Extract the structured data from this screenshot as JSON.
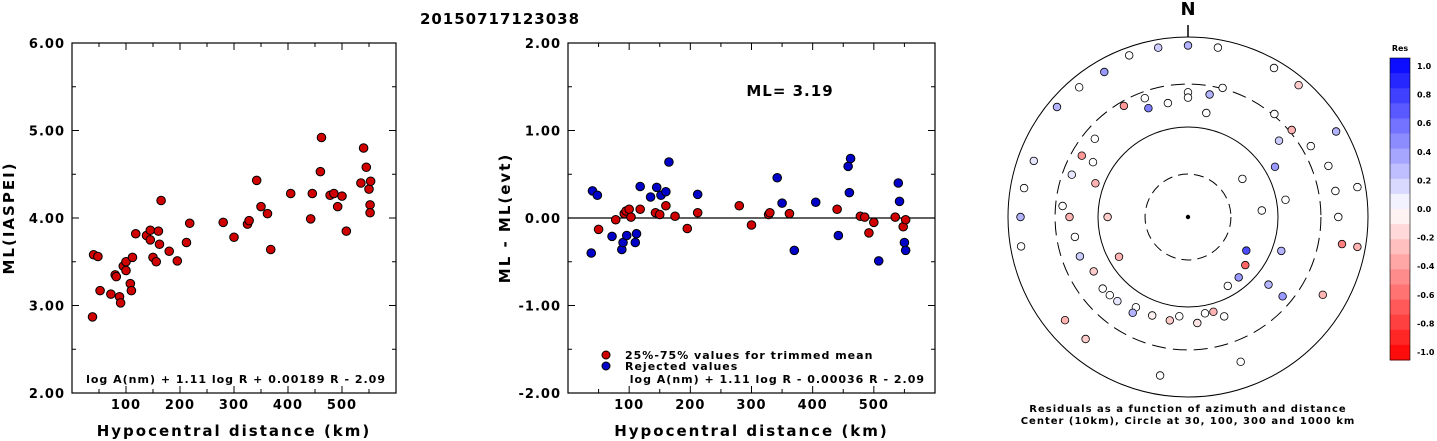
{
  "title": "20150717123038",
  "chart_data": [
    {
      "type": "scatter",
      "xlabel": "Hypocentral distance (km)",
      "ylabel": "ML(IASPEI)",
      "xlim": [
        0,
        600
      ],
      "ylim": [
        2,
        6
      ],
      "xticks": [
        100,
        200,
        300,
        400,
        500
      ],
      "yticks": [
        {
          "v": 2,
          "label": "2.00"
        },
        {
          "v": 3,
          "label": "3.00"
        },
        {
          "v": 4,
          "label": "4.00"
        },
        {
          "v": 5,
          "label": "5.00"
        },
        {
          "v": 6,
          "label": "6.00"
        }
      ],
      "formula": "log A(nm) + 1.11 log R + 0.00189 R - 2.09",
      "point_color": "#d00000",
      "points": [
        [
          38,
          2.87
        ],
        [
          40,
          3.58
        ],
        [
          48,
          3.56
        ],
        [
          52,
          3.17
        ],
        [
          72,
          3.13
        ],
        [
          80,
          3.35
        ],
        [
          82,
          3.33
        ],
        [
          88,
          3.1
        ],
        [
          90,
          3.03
        ],
        [
          95,
          3.45
        ],
        [
          100,
          3.5
        ],
        [
          100,
          3.4
        ],
        [
          108,
          3.25
        ],
        [
          110,
          3.17
        ],
        [
          112,
          3.55
        ],
        [
          118,
          3.82
        ],
        [
          138,
          3.8
        ],
        [
          145,
          3.86
        ],
        [
          145,
          3.75
        ],
        [
          150,
          3.55
        ],
        [
          156,
          3.5
        ],
        [
          160,
          3.85
        ],
        [
          162,
          3.7
        ],
        [
          165,
          4.2
        ],
        [
          180,
          3.62
        ],
        [
          195,
          3.51
        ],
        [
          212,
          3.72
        ],
        [
          218,
          3.94
        ],
        [
          280,
          3.95
        ],
        [
          300,
          3.78
        ],
        [
          325,
          3.93
        ],
        [
          328,
          3.97
        ],
        [
          342,
          4.43
        ],
        [
          350,
          4.13
        ],
        [
          362,
          4.05
        ],
        [
          368,
          3.64
        ],
        [
          405,
          4.28
        ],
        [
          442,
          3.99
        ],
        [
          445,
          4.28
        ],
        [
          460,
          4.53
        ],
        [
          462,
          4.92
        ],
        [
          478,
          4.26
        ],
        [
          485,
          4.28
        ],
        [
          492,
          4.13
        ],
        [
          500,
          4.25
        ],
        [
          508,
          3.85
        ],
        [
          535,
          4.4
        ],
        [
          540,
          4.8
        ],
        [
          545,
          4.58
        ],
        [
          550,
          4.33
        ],
        [
          552,
          4.15
        ],
        [
          553,
          4.42
        ],
        [
          552,
          4.06
        ]
      ]
    },
    {
      "type": "scatter",
      "xlabel": "Hypocentral distance (km)",
      "ylabel": "ML - ML(evt)",
      "xlim": [
        0,
        600
      ],
      "ylim": [
        -2,
        2
      ],
      "xticks": [
        100,
        200,
        300,
        400,
        500
      ],
      "yticks": [
        {
          "v": -2,
          "label": "-2.00"
        },
        {
          "v": -1,
          "label": "-1.00"
        },
        {
          "v": 0,
          "label": "0.00"
        },
        {
          "v": 1,
          "label": "1.00"
        },
        {
          "v": 2,
          "label": "2.00"
        }
      ],
      "ml_label": "ML= 3.19",
      "formula": "log A(nm) + 1.11 log R - 0.00036 R - 2.09",
      "legend": [
        {
          "label": "25%-75% values for trimmed mean",
          "color": "#d00000"
        },
        {
          "label": "Rejected values",
          "color": "#0000c8"
        }
      ],
      "series": [
        {
          "name": "25%-75% values for trimmed mean",
          "color": "#d00000",
          "points": [
            [
              50,
              -0.13
            ],
            [
              78,
              -0.02
            ],
            [
              92,
              0.05
            ],
            [
              95,
              0.08
            ],
            [
              100,
              0.1
            ],
            [
              103,
              0.01
            ],
            [
              118,
              0.1
            ],
            [
              143,
              0.06
            ],
            [
              150,
              0.04
            ],
            [
              160,
              0.14
            ],
            [
              175,
              0.02
            ],
            [
              195,
              -0.12
            ],
            [
              212,
              0.06
            ],
            [
              280,
              0.14
            ],
            [
              300,
              -0.08
            ],
            [
              328,
              0.04
            ],
            [
              330,
              0.06
            ],
            [
              362,
              0.05
            ],
            [
              440,
              0.1
            ],
            [
              478,
              0.02
            ],
            [
              485,
              0.01
            ],
            [
              492,
              -0.17
            ],
            [
              500,
              -0.05
            ],
            [
              535,
              0.01
            ],
            [
              548,
              -0.1
            ],
            [
              552,
              -0.02
            ]
          ]
        },
        {
          "name": "Rejected values",
          "color": "#0000c8",
          "points": [
            [
              38,
              -0.4
            ],
            [
              40,
              0.31
            ],
            [
              48,
              0.26
            ],
            [
              72,
              -0.21
            ],
            [
              88,
              -0.36
            ],
            [
              90,
              -0.28
            ],
            [
              96,
              -0.2
            ],
            [
              110,
              -0.28
            ],
            [
              112,
              -0.18
            ],
            [
              118,
              0.36
            ],
            [
              135,
              0.24
            ],
            [
              145,
              0.35
            ],
            [
              152,
              0.26
            ],
            [
              160,
              0.3
            ],
            [
              165,
              0.64
            ],
            [
              212,
              0.27
            ],
            [
              342,
              0.46
            ],
            [
              350,
              0.17
            ],
            [
              370,
              -0.37
            ],
            [
              405,
              0.18
            ],
            [
              442,
              -0.2
            ],
            [
              458,
              0.59
            ],
            [
              460,
              0.29
            ],
            [
              462,
              0.68
            ],
            [
              508,
              -0.49
            ],
            [
              540,
              0.4
            ],
            [
              542,
              0.19
            ],
            [
              550,
              -0.28
            ],
            [
              552,
              -0.37
            ]
          ]
        }
      ]
    },
    {
      "type": "polar-scatter",
      "north_label": "N",
      "caption": [
        "Residuals as a function of azimuth and distance",
        "Center (10km), Circle at 30, 100, 300 and 1000 km"
      ],
      "colorbar": {
        "title": "Res",
        "labels": [
          "1.0",
          "0.8",
          "0.6",
          "0.4",
          "0.2",
          "0.0",
          "-0.2",
          "-0.4",
          "-0.6",
          "-0.8",
          "-1.0"
        ]
      },
      "stations": [
        [
          11,
          0.02
        ],
        [
          17,
          0.0
        ],
        [
          28,
          0.4
        ],
        [
          30,
          0.0
        ],
        [
          34,
          0.0
        ],
        [
          37,
          0.0
        ],
        [
          33,
          -0.3
        ],
        [
          35,
          -0.1
        ],
        [
          38,
          -0.2
        ],
        [
          40,
          -0.05
        ],
        [
          42,
          0.0
        ],
        [
          44,
          0.1
        ],
        [
          45,
          0.0
        ],
        [
          48,
          -0.2
        ],
        [
          50,
          0.2
        ],
        [
          52,
          0.0
        ],
        [
          54,
          -0.3
        ],
        [
          55,
          0.0
        ],
        [
          58,
          0.1
        ],
        [
          60,
          -0.4
        ],
        [
          62,
          0.0
        ],
        [
          66,
          -0.4
        ],
        [
          68,
          0.0
        ],
        [
          72,
          0.0
        ],
        [
          75,
          0.0
        ],
        [
          80,
          0.0
        ],
        [
          82,
          -0.3
        ],
        [
          84,
          0.0
        ],
        [
          86,
          0.0
        ],
        [
          88,
          0.0
        ],
        [
          90,
          0.0
        ],
        [
          92,
          -0.5
        ],
        [
          96,
          -0.3
        ],
        [
          104,
          0.0
        ],
        [
          110,
          0.0
        ],
        [
          116,
          -0.2
        ],
        [
          118,
          -0.3
        ],
        [
          124,
          0.0
        ],
        [
          126,
          0.3
        ],
        [
          128,
          0.0
        ],
        [
          130,
          0.1
        ],
        [
          134,
          0.3
        ],
        [
          136,
          0.0
        ],
        [
          138,
          0.4
        ],
        [
          140,
          0.0
        ],
        [
          142,
          0.2
        ],
        [
          144,
          0.3
        ],
        [
          146,
          0.0
        ],
        [
          150,
          0.0
        ],
        [
          152,
          -0.2
        ],
        [
          156,
          0.3
        ],
        [
          160,
          0.0
        ],
        [
          164,
          -0.3
        ],
        [
          168,
          0.7
        ],
        [
          170,
          -0.6
        ],
        [
          192,
          -0.3
        ],
        [
          198,
          -0.2
        ],
        [
          202,
          -0.3
        ],
        [
          228,
          0.4
        ],
        [
          232,
          0.0
        ],
        [
          238,
          0.3
        ],
        [
          248,
          0.0
        ],
        [
          290,
          0.0
        ],
        [
          314,
          0.3
        ],
        [
          330,
          0.3
        ],
        [
          334,
          0.0
        ],
        [
          348,
          0.0
        ],
        [
          356,
          0.5
        ],
        [
          358,
          0.0
        ],
        [
          360,
          0.0
        ],
        [
          154,
          0.2
        ],
        [
          146,
          0.3
        ],
        [
          170,
          0.4
        ]
      ]
    }
  ]
}
